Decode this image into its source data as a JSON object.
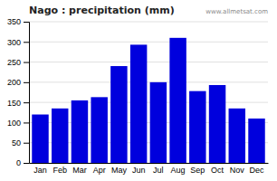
{
  "chart_data": {
    "type": "bar",
    "title": "Nago : precipitation (mm)",
    "categories": [
      "Jan",
      "Feb",
      "Mar",
      "Apr",
      "May",
      "Jun",
      "Jul",
      "Aug",
      "Sep",
      "Oct",
      "Nov",
      "Dec"
    ],
    "values": [
      120,
      135,
      155,
      163,
      240,
      293,
      200,
      310,
      178,
      193,
      135,
      110
    ],
    "color": "#0000dd",
    "ylim": [
      0,
      350
    ],
    "yticks": [
      0,
      50,
      100,
      150,
      200,
      250,
      300,
      350
    ],
    "grid": true,
    "annotations": [
      "www.allmetsat.com"
    ]
  }
}
